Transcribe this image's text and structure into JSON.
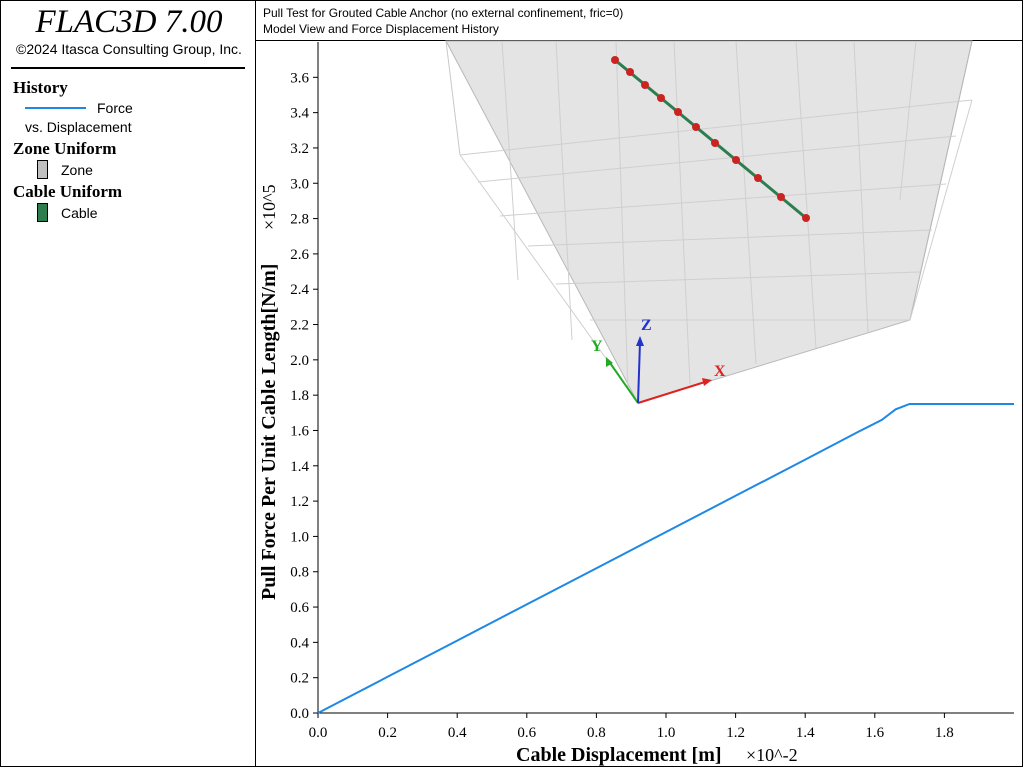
{
  "app": {
    "title": "FLAC3D 7.00",
    "copyright": "©2024 Itasca Consulting Group, Inc."
  },
  "legend": {
    "history_heading": "History",
    "force_label": "Force",
    "force_label_line2": "vs. Displacement",
    "zone_heading": "Zone Uniform",
    "zone_label": "Zone",
    "cable_heading": "Cable Uniform",
    "cable_label": "Cable"
  },
  "header": {
    "line1": "Pull Test for Grouted Cable Anchor (no external confinement, fric=0)",
    "line2": "Model View and Force Displacement History"
  },
  "axes_triad": {
    "x": "X",
    "y": "Y",
    "z": "Z"
  },
  "colors": {
    "history_line": "#1e88e5",
    "zone_fill": "#c0c0c0",
    "cable": "#2e7d4f",
    "cable_node": "#cc2222",
    "axis_x": "#dd2222",
    "axis_y": "#22aa22",
    "axis_z": "#2233cc"
  },
  "chart_data": {
    "type": "line",
    "title": "Model View and Force Displacement History",
    "xlabel": "Cable Displacement [m]",
    "xlabel_suffix": "×10^-2",
    "ylabel": "Pull Force Per Unit Cable Length[N/m]",
    "ylabel_suffix": "×10^5",
    "xlim": [
      0,
      2.0
    ],
    "ylim": [
      0,
      3.8
    ],
    "xticks": [
      0.0,
      0.2,
      0.4,
      0.6,
      0.8,
      1.0,
      1.2,
      1.4,
      1.6,
      1.8
    ],
    "yticks": [
      0.0,
      0.2,
      0.4,
      0.6,
      0.8,
      1.0,
      1.2,
      1.4,
      1.6,
      1.8,
      2.0,
      2.2,
      2.4,
      2.6,
      2.8,
      3.0,
      3.2,
      3.4,
      3.6
    ],
    "series": [
      {
        "name": "Force vs. Displacement",
        "x": [
          0.0,
          0.2,
          0.4,
          0.6,
          0.8,
          1.0,
          1.2,
          1.4,
          1.55,
          1.62,
          1.66,
          1.7,
          1.8,
          1.9,
          2.0
        ],
        "y": [
          0.0,
          0.205,
          0.41,
          0.615,
          0.82,
          1.025,
          1.23,
          1.435,
          1.59,
          1.66,
          1.72,
          1.75,
          1.75,
          1.75,
          1.75
        ]
      }
    ]
  }
}
